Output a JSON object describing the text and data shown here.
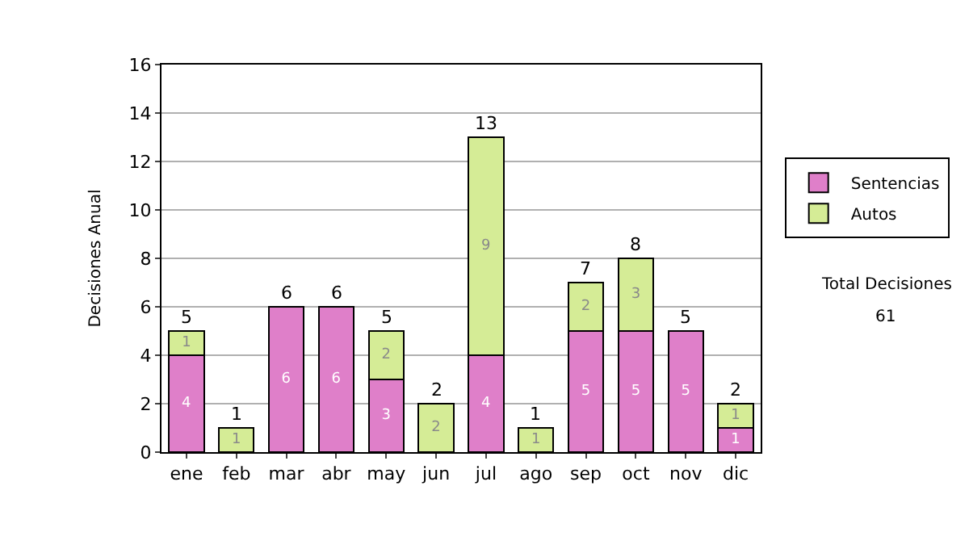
{
  "chart_data": {
    "type": "bar",
    "stacked": true,
    "ylabel": "Decisiones Anual",
    "categories": [
      "ene",
      "feb",
      "mar",
      "abr",
      "may",
      "jun",
      "jul",
      "ago",
      "sep",
      "oct",
      "nov",
      "dic"
    ],
    "series": [
      {
        "name": "Sentencias",
        "color": "#df7fc9",
        "values": [
          4,
          0,
          6,
          6,
          3,
          0,
          4,
          0,
          5,
          5,
          5,
          1
        ],
        "value_labels": [
          "4",
          null,
          "6",
          "6",
          "3",
          null,
          "4",
          null,
          "5",
          "5",
          "5",
          "1"
        ]
      },
      {
        "name": "Autos",
        "color": "#d5ec96",
        "values": [
          1,
          1,
          0,
          0,
          2,
          2,
          9,
          1,
          2,
          3,
          0,
          1
        ],
        "value_labels": [
          "1",
          "1",
          null,
          null,
          "2",
          "2",
          "9",
          "1",
          "2",
          "3",
          null,
          "1"
        ]
      }
    ],
    "totals": [
      "5",
      "1",
      "6",
      "6",
      "5",
      "2",
      "13",
      "1",
      "7",
      "8",
      "5",
      "2"
    ],
    "ylim": [
      0,
      16
    ],
    "yticks": [
      0,
      2,
      4,
      6,
      8,
      10,
      12,
      14,
      16
    ],
    "grid": "y",
    "legend": "right",
    "annotations": [
      "Total Decisiones",
      "61"
    ]
  }
}
